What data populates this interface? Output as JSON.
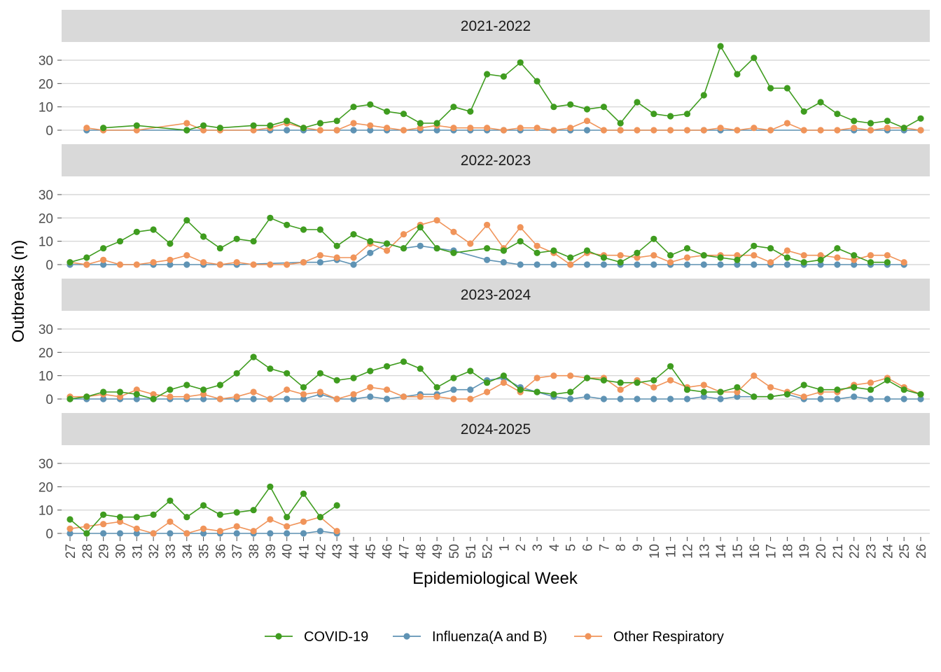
{
  "chart_data": {
    "type": "line",
    "xlabel": "Epidemiological Week",
    "ylabel": "Outbreaks (n)",
    "ylim": [
      0,
      36
    ],
    "yticks": [
      0,
      10,
      20,
      30
    ],
    "grid": true,
    "legend_position": "bottom",
    "categories": [
      "27",
      "28",
      "29",
      "30",
      "31",
      "32",
      "33",
      "34",
      "35",
      "36",
      "37",
      "38",
      "39",
      "40",
      "41",
      "42",
      "43",
      "44",
      "45",
      "46",
      "47",
      "48",
      "49",
      "50",
      "51",
      "52",
      "1",
      "2",
      "3",
      "4",
      "5",
      "6",
      "7",
      "8",
      "9",
      "10",
      "11",
      "12",
      "13",
      "14",
      "15",
      "16",
      "17",
      "18",
      "19",
      "20",
      "21",
      "22",
      "23",
      "24",
      "25",
      "26"
    ],
    "series_styles": [
      {
        "name": "COVID-19",
        "color": "#3f9c1f"
      },
      {
        "name": "Influenza(A and B)",
        "color": "#5f93b4"
      },
      {
        "name": "Other Respiratory",
        "color": "#f0945a"
      }
    ],
    "panels": [
      {
        "label": "2021-2022",
        "series": [
          {
            "name": "COVID-19",
            "values": [
              null,
              null,
              1,
              null,
              2,
              null,
              null,
              0,
              2,
              1,
              null,
              2,
              2,
              4,
              1,
              3,
              4,
              10,
              11,
              8,
              7,
              3,
              3,
              10,
              8,
              24,
              23,
              29,
              21,
              10,
              11,
              9,
              10,
              3,
              12,
              7,
              6,
              7,
              15,
              36,
              24,
              31,
              18,
              18,
              8,
              12,
              7,
              4,
              3,
              4,
              1,
              5
            ]
          },
          {
            "name": "Influenza(A and B)",
            "values": [
              null,
              0,
              null,
              null,
              null,
              null,
              null,
              0,
              null,
              null,
              null,
              null,
              0,
              0,
              0,
              null,
              0,
              0,
              0,
              0,
              null,
              0,
              0,
              0,
              0,
              0,
              0,
              0,
              null,
              0,
              0,
              0,
              null,
              0,
              null,
              null,
              null,
              null,
              0,
              0,
              null,
              null,
              null,
              null,
              null,
              null,
              null,
              0,
              0,
              0,
              0,
              0
            ]
          },
          {
            "name": "Other Respiratory",
            "values": [
              null,
              1,
              0,
              null,
              0,
              null,
              null,
              3,
              0,
              0,
              null,
              0,
              1,
              3,
              1,
              0,
              0,
              3,
              2,
              1,
              0,
              1,
              2,
              1,
              1,
              1,
              0,
              1,
              1,
              0,
              1,
              4,
              0,
              0,
              0,
              0,
              0,
              0,
              0,
              1,
              0,
              1,
              0,
              3,
              0,
              0,
              0,
              1,
              0,
              1,
              1,
              0
            ]
          }
        ]
      },
      {
        "label": "2022-2023",
        "series": [
          {
            "name": "COVID-19",
            "values": [
              1,
              3,
              7,
              10,
              14,
              15,
              9,
              19,
              12,
              7,
              11,
              10,
              20,
              17,
              15,
              15,
              8,
              13,
              10,
              9,
              7,
              16,
              7,
              5,
              null,
              7,
              6,
              10,
              5,
              6,
              3,
              6,
              3,
              1,
              5,
              11,
              4,
              7,
              4,
              3,
              2,
              8,
              7,
              3,
              1,
              2,
              7,
              4,
              1,
              1,
              null,
              null
            ]
          },
          {
            "name": "Influenza(A and B)",
            "values": [
              0,
              0,
              0,
              null,
              null,
              0,
              0,
              0,
              0,
              0,
              0,
              null,
              null,
              null,
              1,
              1,
              2,
              0,
              5,
              9,
              7,
              8,
              7,
              6,
              null,
              2,
              1,
              0,
              0,
              0,
              0,
              0,
              0,
              0,
              0,
              0,
              0,
              0,
              0,
              0,
              0,
              0,
              0,
              0,
              0,
              0,
              0,
              0,
              0,
              0,
              0,
              null
            ]
          },
          {
            "name": "Other Respiratory",
            "values": [
              1,
              0,
              2,
              0,
              0,
              1,
              2,
              4,
              1,
              0,
              1,
              0,
              0,
              0,
              1,
              4,
              3,
              3,
              9,
              6,
              13,
              17,
              19,
              14,
              9,
              17,
              7,
              16,
              8,
              5,
              0,
              5,
              4,
              4,
              3,
              4,
              1,
              3,
              4,
              4,
              4,
              4,
              1,
              6,
              4,
              4,
              3,
              2,
              4,
              4,
              1,
              null
            ]
          }
        ]
      },
      {
        "label": "2023-2024",
        "series": [
          {
            "name": "COVID-19",
            "values": [
              0,
              1,
              3,
              3,
              2,
              0,
              4,
              6,
              4,
              6,
              11,
              18,
              13,
              11,
              5,
              11,
              8,
              9,
              12,
              14,
              16,
              13,
              5,
              9,
              12,
              7,
              10,
              4,
              3,
              2,
              3,
              9,
              8,
              7,
              7,
              8,
              14,
              4,
              3,
              3,
              5,
              1,
              1,
              2,
              6,
              4,
              4,
              5,
              4,
              8,
              4,
              2
            ]
          },
          {
            "name": "Influenza(A and B)",
            "values": [
              0,
              0,
              0,
              0,
              0,
              0,
              0,
              0,
              0,
              0,
              0,
              0,
              0,
              0,
              0,
              2,
              0,
              0,
              1,
              0,
              1,
              2,
              2,
              4,
              4,
              8,
              9,
              5,
              3,
              1,
              0,
              1,
              0,
              0,
              0,
              0,
              0,
              0,
              1,
              0,
              1,
              1,
              1,
              2,
              0,
              0,
              0,
              1,
              0,
              0,
              0,
              0
            ]
          },
          {
            "name": "Other Respiratory",
            "values": [
              1,
              1,
              2,
              1,
              4,
              2,
              1,
              1,
              2,
              0,
              1,
              3,
              0,
              4,
              2,
              3,
              0,
              2,
              5,
              4,
              1,
              1,
              1,
              0,
              0,
              3,
              7,
              3,
              9,
              10,
              10,
              9,
              9,
              4,
              8,
              5,
              8,
              5,
              6,
              3,
              3,
              10,
              5,
              3,
              1,
              3,
              3,
              6,
              7,
              9,
              5,
              2
            ]
          }
        ]
      },
      {
        "label": "2024-2025",
        "series": [
          {
            "name": "COVID-19",
            "values": [
              6,
              0,
              8,
              7,
              7,
              8,
              14,
              7,
              12,
              8,
              9,
              10,
              20,
              7,
              17,
              7,
              12,
              null,
              null,
              null,
              null,
              null,
              null,
              null,
              null,
              null,
              null,
              null,
              null,
              null,
              null,
              null,
              null,
              null,
              null,
              null,
              null,
              null,
              null,
              null,
              null,
              null,
              null,
              null,
              null,
              null,
              null,
              null,
              null,
              null,
              null,
              null
            ]
          },
          {
            "name": "Influenza(A and B)",
            "values": [
              0,
              0,
              0,
              0,
              0,
              0,
              0,
              0,
              0,
              0,
              0,
              0,
              0,
              0,
              0,
              1,
              0,
              null,
              null,
              null,
              null,
              null,
              null,
              null,
              null,
              null,
              null,
              null,
              null,
              null,
              null,
              null,
              null,
              null,
              null,
              null,
              null,
              null,
              null,
              null,
              null,
              null,
              null,
              null,
              null,
              null,
              null,
              null,
              null,
              null,
              null,
              null
            ]
          },
          {
            "name": "Other Respiratory",
            "values": [
              2,
              3,
              4,
              5,
              2,
              0,
              5,
              0,
              2,
              1,
              3,
              1,
              6,
              3,
              5,
              7,
              1,
              null,
              null,
              null,
              null,
              null,
              null,
              null,
              null,
              null,
              null,
              null,
              null,
              null,
              null,
              null,
              null,
              null,
              null,
              null,
              null,
              null,
              null,
              null,
              null,
              null,
              null,
              null,
              null,
              null,
              null,
              null,
              null,
              null,
              null,
              null
            ]
          }
        ]
      }
    ]
  }
}
